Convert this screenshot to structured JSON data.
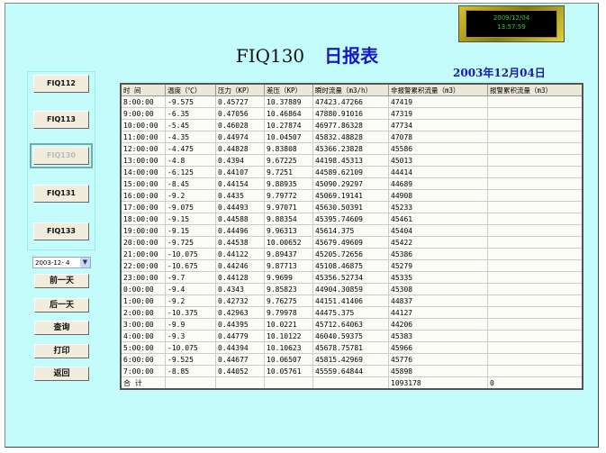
{
  "clock": {
    "date": "2009/12/04",
    "time": "13:57:59"
  },
  "title": {
    "code": "FIQ130",
    "name": "日报表"
  },
  "report_date": "2003年12月04日",
  "nav_buttons": [
    "FIQ112",
    "FIQ113",
    "FIQ130",
    "FIQ131",
    "FIQ133"
  ],
  "active_nav": "FIQ130",
  "date_select": "2003-12- 4",
  "action_buttons": [
    "前一天",
    "后一天",
    "查询",
    "打印",
    "返回"
  ],
  "table": {
    "headers": [
      "时 间",
      "温度（℃）",
      "压力（KP）",
      "差压（KP）",
      "瞬时流量（m3/h）",
      "非报警累积流量（m3）",
      "报警累积流量（m3）"
    ],
    "rows": [
      [
        "8:00:00",
        "-9.575",
        "0.45727",
        "10.37889",
        "47423.47266",
        "47419",
        ""
      ],
      [
        "9:00:00",
        "-6.35",
        "0.47056",
        "10.46864",
        "47880.91016",
        "47319",
        ""
      ],
      [
        "10:00:00",
        "-5.45",
        "0.46028",
        "10.27874",
        "46977.86328",
        "47734",
        ""
      ],
      [
        "11:00:00",
        "-4.35",
        "0.44974",
        "10.04507",
        "45832.48828",
        "47078",
        ""
      ],
      [
        "12:00:00",
        "-4.475",
        "0.44828",
        "9.83808",
        "45366.23828",
        "45586",
        ""
      ],
      [
        "13:00:00",
        "-4.8",
        "0.4394",
        "9.67225",
        "44198.45313",
        "45013",
        ""
      ],
      [
        "14:00:00",
        "-6.125",
        "0.44107",
        "9.7251",
        "44589.62109",
        "44414",
        ""
      ],
      [
        "15:00:00",
        "-8.45",
        "0.44154",
        "9.88935",
        "45090.29297",
        "44689",
        ""
      ],
      [
        "16:00:00",
        "-9.2",
        "0.4435",
        "9.79772",
        "45069.19141",
        "44908",
        ""
      ],
      [
        "17:00:00",
        "-9.075",
        "0.44493",
        "9.97071",
        "45630.50391",
        "45233",
        ""
      ],
      [
        "18:00:00",
        "-9.15",
        "0.44588",
        "9.88354",
        "45395.74609",
        "45461",
        ""
      ],
      [
        "19:00:00",
        "-9.15",
        "0.44496",
        "9.96313",
        "45614.375",
        "45404",
        ""
      ],
      [
        "20:00:00",
        "-9.725",
        "0.44538",
        "10.00652",
        "45679.49609",
        "45422",
        ""
      ],
      [
        "21:00:00",
        "-10.075",
        "0.44122",
        "9.89437",
        "45205.72656",
        "45386",
        ""
      ],
      [
        "22:00:00",
        "-10.675",
        "0.44246",
        "9.87713",
        "45108.46875",
        "45279",
        ""
      ],
      [
        "23:00:00",
        "-9.7",
        "0.44128",
        "9.9699",
        "45356.52734",
        "45335",
        ""
      ],
      [
        "0:00:00",
        "-9.4",
        "0.4343",
        "9.85823",
        "44904.30859",
        "45308",
        ""
      ],
      [
        "1:00:00",
        "-9.2",
        "0.42732",
        "9.76275",
        "44151.41406",
        "44837",
        ""
      ],
      [
        "2:00:00",
        "-10.375",
        "0.42963",
        "9.79978",
        "44475.375",
        "44127",
        ""
      ],
      [
        "3:00:00",
        "-9.9",
        "0.44395",
        "10.0221",
        "45712.64063",
        "44206",
        ""
      ],
      [
        "4:00:00",
        "-9.3",
        "0.44779",
        "10.10122",
        "46040.59375",
        "45383",
        ""
      ],
      [
        "5:00:00",
        "-10.075",
        "0.44394",
        "10.10623",
        "45678.75781",
        "45966",
        ""
      ],
      [
        "6:00:00",
        "-9.525",
        "0.44677",
        "10.06507",
        "45815.42969",
        "45776",
        ""
      ],
      [
        "7:00:00",
        "-8.85",
        "0.44052",
        "10.05761",
        "45559.64844",
        "45898",
        ""
      ]
    ],
    "total": [
      "合 计",
      "",
      "",
      "",
      "",
      "1093178",
      "0"
    ]
  }
}
